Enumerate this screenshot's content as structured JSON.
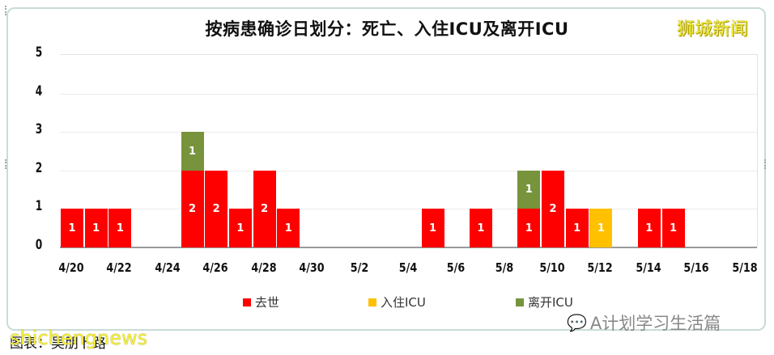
{
  "title": "按病患确诊日划分：死亡、入住ICU及离开ICU",
  "logo": "狮城新闻",
  "caption": "图表：吴朋卜路",
  "watermark_left": "shichengnews",
  "watermark_right": "A计划学习生活篇",
  "legend": [
    {
      "label": "去世",
      "color": "#ff0000"
    },
    {
      "label": "入住ICU",
      "color": "#ffc000"
    },
    {
      "label": "离开ICU",
      "color": "#77933c"
    }
  ],
  "y_ticks": [
    "0",
    "1",
    "2",
    "3",
    "4",
    "5"
  ],
  "x_ticks": [
    "4/20",
    "4/22",
    "4/24",
    "4/26",
    "4/28",
    "4/30",
    "5/2",
    "5/4",
    "5/6",
    "5/8",
    "5/10",
    "5/12",
    "5/14",
    "5/16",
    "5/18"
  ],
  "chart_data": {
    "type": "bar",
    "stacked": true,
    "title": "按病患确诊日划分：死亡、入住ICU及离开ICU",
    "xlabel": "",
    "ylabel": "",
    "ylim": [
      0,
      5
    ],
    "grid": true,
    "legend_position": "bottom",
    "categories": [
      "4/20",
      "4/21",
      "4/22",
      "4/23",
      "4/24",
      "4/25",
      "4/26",
      "4/27",
      "4/28",
      "4/29",
      "4/30",
      "5/1",
      "5/2",
      "5/3",
      "5/4",
      "5/5",
      "5/6",
      "5/7",
      "5/8",
      "5/9",
      "5/10",
      "5/11",
      "5/12",
      "5/13",
      "5/14",
      "5/15",
      "5/16",
      "5/17",
      "5/18"
    ],
    "series": [
      {
        "name": "去世",
        "color": "#ff0000",
        "values": [
          1,
          1,
          1,
          0,
          0,
          2,
          2,
          1,
          2,
          1,
          0,
          0,
          0,
          0,
          0,
          1,
          0,
          1,
          0,
          1,
          2,
          1,
          0,
          0,
          1,
          1,
          0,
          0,
          0
        ]
      },
      {
        "name": "入住ICU",
        "color": "#ffc000",
        "values": [
          0,
          0,
          0,
          0,
          0,
          0,
          0,
          0,
          0,
          0,
          0,
          0,
          0,
          0,
          0,
          0,
          0,
          0,
          0,
          0,
          0,
          0,
          1,
          0,
          0,
          0,
          0,
          0,
          0
        ]
      },
      {
        "name": "离开ICU",
        "color": "#77933c",
        "values": [
          0,
          0,
          0,
          0,
          0,
          1,
          0,
          0,
          0,
          0,
          0,
          0,
          0,
          0,
          0,
          0,
          0,
          0,
          0,
          1,
          0,
          0,
          0,
          0,
          0,
          0,
          0,
          0,
          0
        ]
      }
    ]
  }
}
